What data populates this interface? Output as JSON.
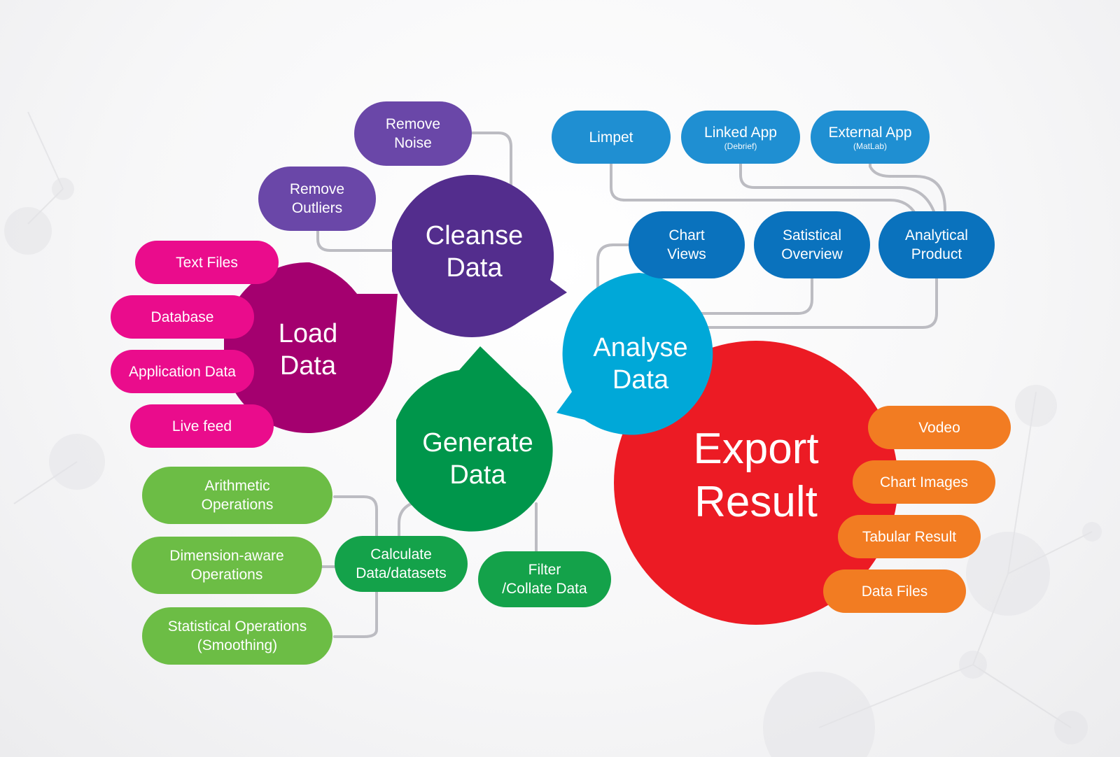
{
  "hubs": {
    "load": {
      "label": "Load\nData",
      "color": "#a4006f"
    },
    "cleanse": {
      "label": "Cleanse\nData",
      "color": "#532d8d"
    },
    "analyse": {
      "label": "Analyse\nData",
      "color": "#00a8d8"
    },
    "generate": {
      "label": "Generate\nData",
      "color": "#00964b"
    },
    "export": {
      "label": "Export\nResult",
      "color": "#ec1b24"
    }
  },
  "load_items": [
    "Text Files",
    "Database",
    "Application Data",
    "Live feed"
  ],
  "cleanse_items": [
    "Remove\nNoise",
    "Remove\nOutliers"
  ],
  "analyse_top": [
    {
      "label": "Limpet",
      "sub": ""
    },
    {
      "label": "Linked App",
      "sub": "(Debrief)"
    },
    {
      "label": "External App",
      "sub": "(MatLab)"
    }
  ],
  "analyse_items": [
    "Chart\nViews",
    "Satistical\nOverview",
    "Analytical\nProduct"
  ],
  "generate_items": {
    "calculate": "Calculate\nData/datasets",
    "filter": "Filter\n/Collate Data",
    "ops": [
      "Arithmetic\nOperations",
      "Dimension-aware\nOperations",
      "Statistical Operations\n(Smoothing)"
    ]
  },
  "export_items": [
    "Vodeo",
    "Chart Images",
    "Tabular Result",
    "Data Files"
  ],
  "colors": {
    "connector": "#bcbcc2",
    "pink": "#ea0c8c",
    "purple": "#6a47a8",
    "blue_light": "#1f8fd2",
    "blue_dark": "#0a72bd",
    "green_light": "#6cbd45",
    "green_dark": "#14a24a",
    "orange": "#f27c22"
  }
}
